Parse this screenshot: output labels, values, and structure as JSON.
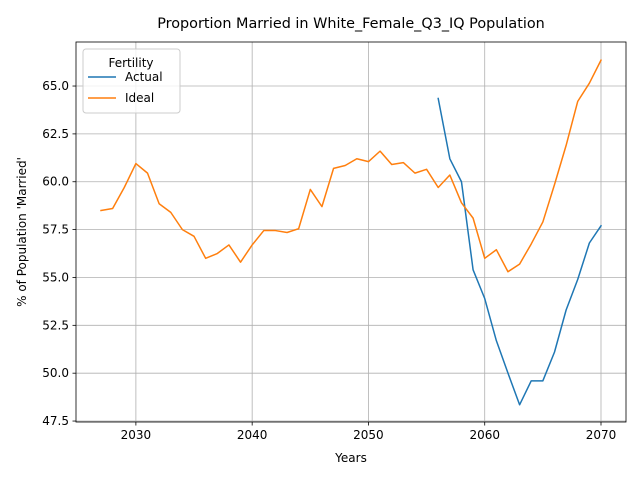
{
  "chart_data": {
    "type": "line",
    "title": "Proportion Married in White_Female_Q3_IQ Population",
    "xlabel": "Years",
    "ylabel": "% of Population 'Married'",
    "xlim": [
      2024.85,
      2072.15
    ],
    "ylim": [
      47.45,
      67.3
    ],
    "xticks": [
      2030,
      2040,
      2050,
      2060,
      2070
    ],
    "yticks": [
      47.5,
      50.0,
      52.5,
      55.0,
      57.5,
      60.0,
      62.5,
      65.0
    ],
    "xtick_labels": [
      "2030",
      "2040",
      "2050",
      "2060",
      "2070"
    ],
    "ytick_labels": [
      "47.5",
      "50.0",
      "52.5",
      "55.0",
      "57.5",
      "60.0",
      "62.5",
      "65.0"
    ],
    "grid": true,
    "legend": {
      "title": "Fertility",
      "placement": "top-left"
    },
    "series": [
      {
        "name": "Actual",
        "color": "#1f77b4",
        "x": [
          2056,
          2057,
          2058,
          2059,
          2060,
          2061,
          2062,
          2063,
          2064,
          2065,
          2066,
          2067,
          2068,
          2069,
          2070
        ],
        "values": [
          64.35,
          61.2,
          60.0,
          55.4,
          53.9,
          51.7,
          50.0,
          48.35,
          49.6,
          49.6,
          51.1,
          53.3,
          54.9,
          56.8,
          57.7
        ]
      },
      {
        "name": "Ideal",
        "color": "#ff7f0e",
        "x": [
          2027,
          2028,
          2029,
          2030,
          2031,
          2032,
          2033,
          2034,
          2035,
          2036,
          2037,
          2038,
          2039,
          2040,
          2041,
          2042,
          2043,
          2044,
          2045,
          2046,
          2047,
          2048,
          2049,
          2050,
          2051,
          2052,
          2053,
          2054,
          2055,
          2056,
          2057,
          2058,
          2059,
          2060,
          2061,
          2062,
          2063,
          2064,
          2065,
          2066,
          2067,
          2068,
          2069,
          2070
        ],
        "values": [
          58.5,
          58.6,
          59.7,
          60.95,
          60.45,
          58.85,
          58.4,
          57.5,
          57.15,
          56.0,
          56.25,
          56.7,
          55.8,
          56.7,
          57.45,
          57.45,
          57.35,
          57.55,
          59.6,
          58.7,
          60.7,
          60.85,
          61.2,
          61.05,
          61.6,
          60.9,
          61.0,
          60.45,
          60.65,
          59.7,
          60.35,
          58.9,
          58.1,
          56.0,
          56.45,
          55.3,
          55.7,
          56.75,
          57.9,
          59.85,
          61.9,
          64.2,
          65.15,
          66.35
        ]
      }
    ]
  }
}
